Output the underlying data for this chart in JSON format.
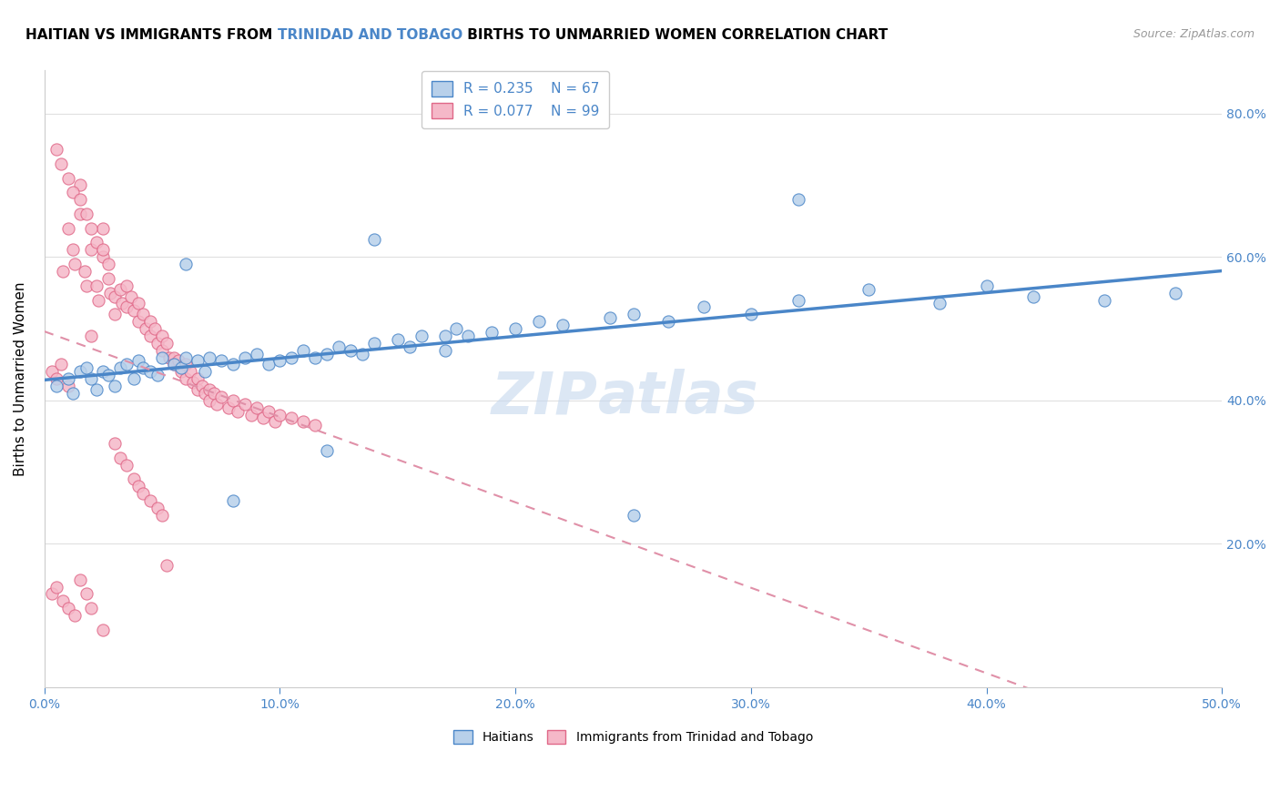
{
  "title_part1": "HAITIAN VS IMMIGRANTS FROM ",
  "title_part2": "TRINIDAD AND TOBAGO",
  "title_part3": " BIRTHS TO UNMARRIED WOMEN CORRELATION CHART",
  "source": "Source: ZipAtlas.com",
  "ylabel": "Births to Unmarried Women",
  "legend1_R": "0.235",
  "legend1_N": "67",
  "legend2_R": "0.077",
  "legend2_N": "99",
  "color_blue_fill": "#b8d0ea",
  "color_blue_edge": "#4a86c8",
  "color_pink_fill": "#f5b8c8",
  "color_pink_edge": "#e06888",
  "color_accent": "#4a86c8",
  "xlim": [
    0.0,
    0.5
  ],
  "ylim": [
    0.0,
    0.86
  ],
  "right_ytick_vals": [
    0.2,
    0.4,
    0.6,
    0.8
  ],
  "right_ytick_labels": [
    "20.0%",
    "40.0%",
    "60.0%",
    "80.0%"
  ],
  "xtick_vals": [
    0.0,
    0.1,
    0.2,
    0.3,
    0.4,
    0.5
  ],
  "xtick_labels": [
    "0.0%",
    "10.0%",
    "20.0%",
    "30.0%",
    "40.0%",
    "50.0%"
  ],
  "haitians_x": [
    0.005,
    0.01,
    0.012,
    0.015,
    0.018,
    0.02,
    0.022,
    0.025,
    0.027,
    0.03,
    0.032,
    0.035,
    0.038,
    0.04,
    0.042,
    0.045,
    0.048,
    0.05,
    0.055,
    0.058,
    0.06,
    0.065,
    0.068,
    0.07,
    0.075,
    0.08,
    0.085,
    0.09,
    0.095,
    0.1,
    0.105,
    0.11,
    0.115,
    0.12,
    0.125,
    0.13,
    0.135,
    0.14,
    0.15,
    0.155,
    0.16,
    0.17,
    0.175,
    0.18,
    0.19,
    0.2,
    0.21,
    0.22,
    0.24,
    0.25,
    0.265,
    0.28,
    0.3,
    0.32,
    0.35,
    0.38,
    0.4,
    0.42,
    0.45,
    0.48,
    0.06,
    0.08,
    0.12,
    0.14,
    0.17,
    0.25,
    0.32
  ],
  "haitians_y": [
    0.42,
    0.43,
    0.41,
    0.44,
    0.445,
    0.43,
    0.415,
    0.44,
    0.435,
    0.42,
    0.445,
    0.45,
    0.43,
    0.455,
    0.445,
    0.44,
    0.435,
    0.46,
    0.45,
    0.445,
    0.46,
    0.455,
    0.44,
    0.46,
    0.455,
    0.45,
    0.46,
    0.465,
    0.45,
    0.455,
    0.46,
    0.47,
    0.46,
    0.465,
    0.475,
    0.47,
    0.465,
    0.48,
    0.485,
    0.475,
    0.49,
    0.49,
    0.5,
    0.49,
    0.495,
    0.5,
    0.51,
    0.505,
    0.515,
    0.52,
    0.51,
    0.53,
    0.52,
    0.54,
    0.555,
    0.535,
    0.56,
    0.545,
    0.54,
    0.55,
    0.59,
    0.26,
    0.33,
    0.625,
    0.47,
    0.24,
    0.68
  ],
  "trinidad_x": [
    0.003,
    0.005,
    0.007,
    0.008,
    0.01,
    0.01,
    0.012,
    0.013,
    0.015,
    0.015,
    0.017,
    0.018,
    0.02,
    0.02,
    0.022,
    0.023,
    0.025,
    0.025,
    0.027,
    0.028,
    0.03,
    0.03,
    0.032,
    0.033,
    0.035,
    0.035,
    0.037,
    0.038,
    0.04,
    0.04,
    0.042,
    0.043,
    0.045,
    0.045,
    0.047,
    0.048,
    0.05,
    0.05,
    0.052,
    0.053,
    0.055,
    0.055,
    0.057,
    0.058,
    0.06,
    0.06,
    0.062,
    0.063,
    0.065,
    0.065,
    0.067,
    0.068,
    0.07,
    0.07,
    0.072,
    0.073,
    0.075,
    0.078,
    0.08,
    0.082,
    0.085,
    0.088,
    0.09,
    0.093,
    0.095,
    0.098,
    0.1,
    0.105,
    0.11,
    0.115,
    0.005,
    0.007,
    0.01,
    0.012,
    0.015,
    0.018,
    0.02,
    0.022,
    0.025,
    0.027,
    0.03,
    0.032,
    0.035,
    0.038,
    0.04,
    0.042,
    0.045,
    0.048,
    0.05,
    0.052,
    0.003,
    0.005,
    0.008,
    0.01,
    0.013,
    0.015,
    0.018,
    0.02,
    0.025
  ],
  "trinidad_y": [
    0.44,
    0.43,
    0.45,
    0.58,
    0.64,
    0.42,
    0.61,
    0.59,
    0.7,
    0.66,
    0.58,
    0.56,
    0.61,
    0.49,
    0.56,
    0.54,
    0.64,
    0.6,
    0.57,
    0.55,
    0.545,
    0.52,
    0.555,
    0.535,
    0.56,
    0.53,
    0.545,
    0.525,
    0.535,
    0.51,
    0.52,
    0.5,
    0.51,
    0.49,
    0.5,
    0.48,
    0.49,
    0.47,
    0.48,
    0.46,
    0.46,
    0.45,
    0.455,
    0.44,
    0.45,
    0.43,
    0.44,
    0.425,
    0.43,
    0.415,
    0.42,
    0.41,
    0.415,
    0.4,
    0.41,
    0.395,
    0.405,
    0.39,
    0.4,
    0.385,
    0.395,
    0.38,
    0.39,
    0.375,
    0.385,
    0.37,
    0.38,
    0.375,
    0.37,
    0.365,
    0.75,
    0.73,
    0.71,
    0.69,
    0.68,
    0.66,
    0.64,
    0.62,
    0.61,
    0.59,
    0.34,
    0.32,
    0.31,
    0.29,
    0.28,
    0.27,
    0.26,
    0.25,
    0.24,
    0.17,
    0.13,
    0.14,
    0.12,
    0.11,
    0.1,
    0.15,
    0.13,
    0.11,
    0.08
  ]
}
